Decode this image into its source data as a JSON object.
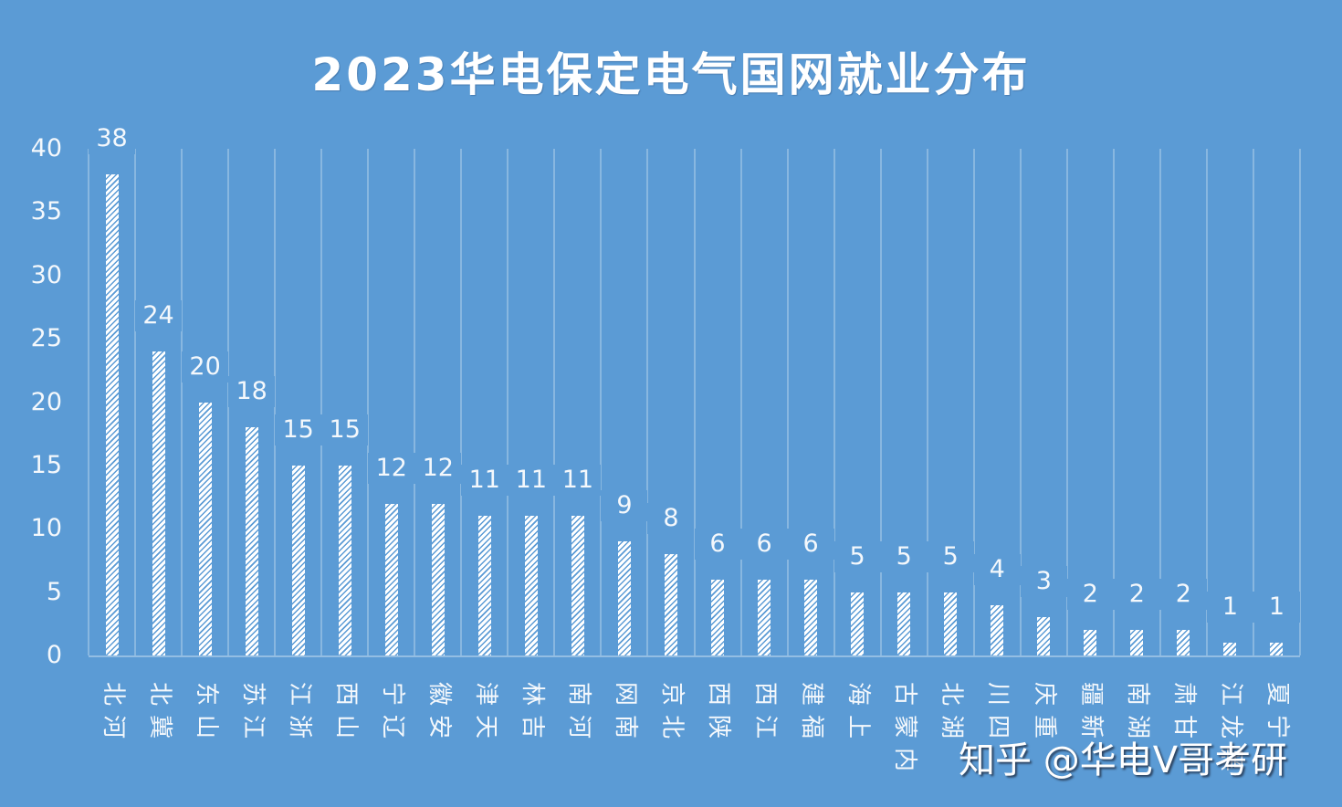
{
  "chart_data": {
    "type": "bar",
    "title": "2023华电保定电气国网就业分布",
    "xlabel": "",
    "ylabel": "",
    "ylim": [
      0,
      40
    ],
    "yticks": [
      0,
      5,
      10,
      15,
      20,
      25,
      30,
      35,
      40
    ],
    "grid": {
      "vertical": true,
      "horizontal": false
    },
    "legend": null,
    "categories": [
      "河北",
      "冀北",
      "山东",
      "江苏",
      "浙江",
      "山西",
      "辽宁",
      "安徽",
      "天津",
      "吉林",
      "河南",
      "南网",
      "北京",
      "陕西",
      "江西",
      "福建",
      "上海",
      "内蒙古",
      "湖北",
      "四川",
      "重庆",
      "新疆",
      "湖南",
      "甘肃",
      "黑龙江",
      "宁夏"
    ],
    "values": [
      38,
      24,
      20,
      18,
      15,
      15,
      12,
      12,
      11,
      11,
      11,
      9,
      8,
      6,
      6,
      6,
      5,
      5,
      5,
      4,
      3,
      2,
      2,
      2,
      1,
      1
    ],
    "data_labels": true,
    "bar_fill": "white diagonal hatch",
    "background_color": "#5b9bd5"
  },
  "watermark": "知乎 @华电V哥考研"
}
